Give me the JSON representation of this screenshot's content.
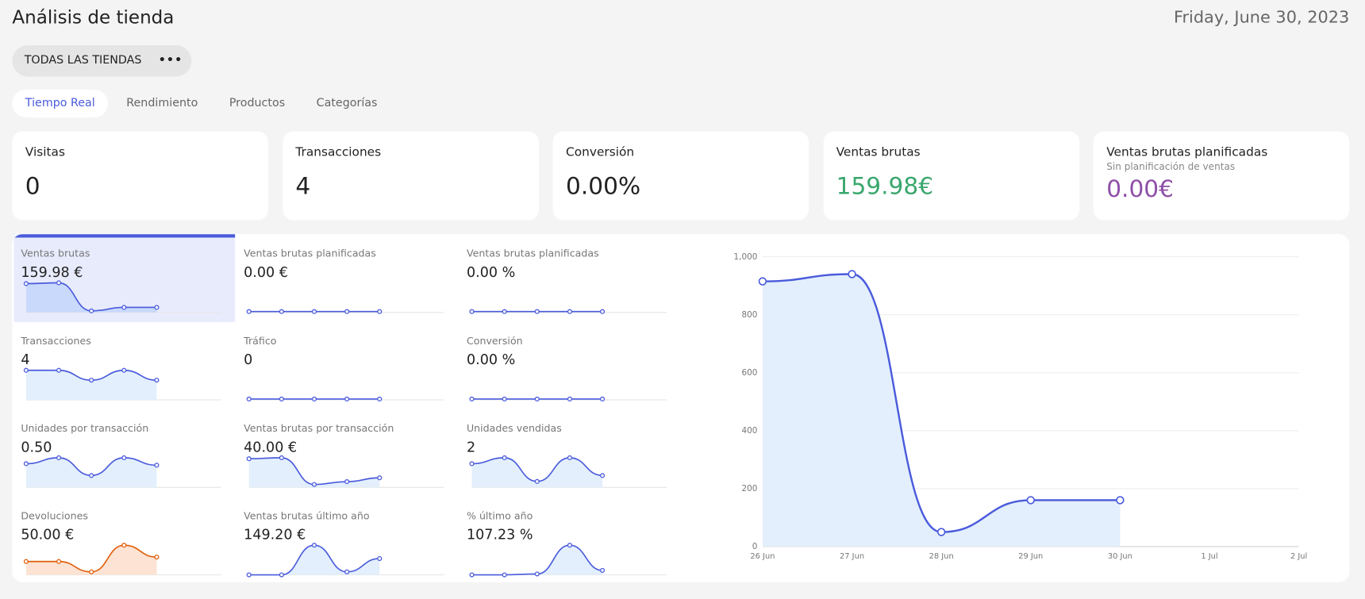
{
  "header": {
    "title": "Análisis de tienda",
    "date": "Friday, June 30, 2023"
  },
  "store_filter": {
    "label": "TODAS LAS TIENDAS"
  },
  "tabs": [
    "Tiempo Real",
    "Rendimiento",
    "Productos",
    "Categorías"
  ],
  "kpis": [
    {
      "label": "Visitas",
      "value": "0"
    },
    {
      "label": "Transacciones",
      "value": "4"
    },
    {
      "label": "Conversión",
      "value": "0.00%"
    },
    {
      "label": "Ventas brutas",
      "value": "159.98€",
      "color": "#3aa76d"
    },
    {
      "label": "Ventas brutas planificadas",
      "subtitle": "Sin planificación de ventas",
      "value": "0.00€",
      "color": "#8e4ea8"
    }
  ],
  "metrics": [
    {
      "label": "Ventas brutas",
      "value": "159.98 €",
      "color": "#4a5bdc",
      "spark": [
        915,
        940,
        50,
        160,
        160
      ],
      "selected": true
    },
    {
      "label": "Ventas brutas planificadas",
      "value": "0.00 €",
      "color": "#4a5bdc",
      "spark": [
        0,
        0,
        0,
        0,
        0
      ]
    },
    {
      "label": "Ventas brutas planificadas",
      "value": "0.00 %",
      "color": "#4a5bdc",
      "spark": [
        0,
        0,
        0,
        0,
        0
      ]
    },
    {
      "label": "Transacciones",
      "value": "4",
      "color": "#4a5bdc",
      "spark": [
        6,
        6,
        4,
        6,
        4
      ]
    },
    {
      "label": "Tráfico",
      "value": "0",
      "color": "#4a5bdc",
      "spark": [
        0,
        0,
        0,
        0,
        0
      ]
    },
    {
      "label": "Conversión",
      "value": "0.00 %",
      "color": "#4a5bdc",
      "spark": [
        0,
        0,
        0,
        0,
        0
      ]
    },
    {
      "label": "Unidades por transacción",
      "value": "0.50",
      "color": "#4a5bdc",
      "spark": [
        0.8,
        1,
        0.4,
        1,
        0.75
      ]
    },
    {
      "label": "Ventas brutas por transacción",
      "value": "40.00 €",
      "color": "#4a5bdc",
      "spark": [
        150,
        155,
        15,
        30,
        50
      ]
    },
    {
      "label": "Unidades vendidas",
      "value": "2",
      "color": "#4a5bdc",
      "spark": [
        8,
        10,
        2,
        10,
        4
      ]
    },
    {
      "label": "Devoluciones",
      "value": "50.00 €",
      "color": "#e0600e",
      "spark": [
        45,
        45,
        10,
        100,
        60
      ]
    },
    {
      "label": "Ventas brutas último año",
      "value": "149.20 €",
      "color": "#4a5bdc",
      "spark": [
        0,
        0,
        100,
        10,
        55
      ]
    },
    {
      "label": "% último año",
      "value": "107.23 %",
      "color": "#4a5bdc",
      "spark": [
        0,
        0,
        3,
        100,
        15
      ]
    }
  ],
  "chart_data": {
    "type": "line",
    "color": "#4a5bdc",
    "categories": [
      "26 Jun",
      "27 Jun",
      "28 Jun",
      "29 Jun",
      "30 Jun",
      "1 Jul",
      "2 Jul"
    ],
    "values": [
      915,
      940,
      50,
      160,
      160,
      null,
      null
    ],
    "ylim": [
      0,
      1000
    ],
    "yticks": [
      0,
      200,
      400,
      600,
      800,
      {
        "value": 1000,
        "label": "1,000"
      }
    ],
    "grid": true
  }
}
